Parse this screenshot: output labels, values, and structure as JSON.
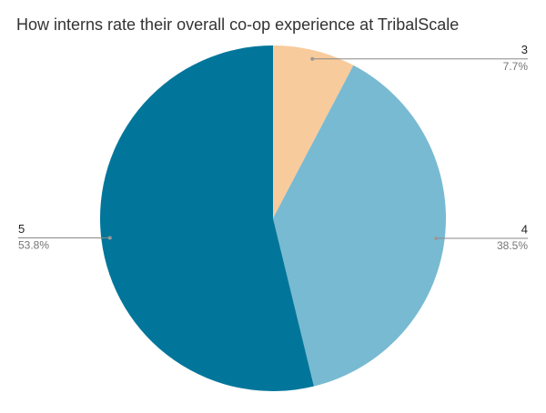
{
  "chart_data": {
    "type": "pie",
    "title": "How interns rate their overall co-op experience at TribalScale",
    "categories": [
      "3",
      "4",
      "5"
    ],
    "values": [
      7.7,
      38.5,
      53.8
    ],
    "value_labels": [
      "7.7%",
      "38.5%",
      "53.8%"
    ],
    "colors": [
      "#f8cb9c",
      "#78bad2",
      "#02769a"
    ]
  }
}
